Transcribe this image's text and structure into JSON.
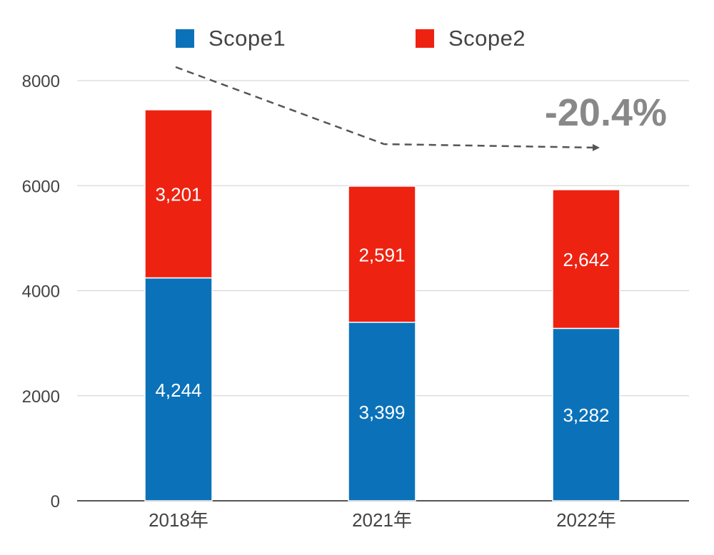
{
  "chart_data": {
    "type": "bar",
    "stacked": true,
    "categories": [
      "2018年",
      "2021年",
      "2022年"
    ],
    "series": [
      {
        "name": "Scope1",
        "values": [
          4244,
          3399,
          3282
        ],
        "labels": [
          "4,244",
          "3,399",
          "3,282"
        ],
        "color": "#0B72B9"
      },
      {
        "name": "Scope2",
        "values": [
          3201,
          2591,
          2642
        ],
        "labels": [
          "3,201",
          "2,591",
          "2,642"
        ],
        "color": "#EE2211"
      }
    ],
    "ylim": [
      0,
      8000
    ],
    "yticks": [
      "0",
      "2000",
      "4000",
      "6000",
      "8000"
    ],
    "grid": true,
    "legend": "top",
    "annotation": {
      "text": "-20.4%",
      "color": "#888888"
    }
  }
}
